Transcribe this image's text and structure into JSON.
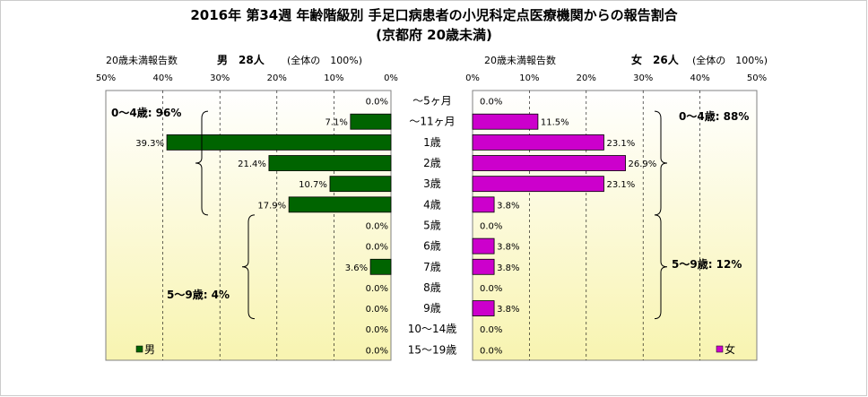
{
  "chart_data": {
    "type": "bar",
    "title": "2016年 第34週 年齢階級別 手足口病患者の小児科定点医療機関からの報告割合",
    "subtitle": "(京都府 20歳未満)",
    "categories": [
      "～5ヶ月",
      "～11ヶ月",
      "1歳",
      "2歳",
      "3歳",
      "4歳",
      "5歳",
      "6歳",
      "7歳",
      "8歳",
      "9歳",
      "10～14歳",
      "15～19歳"
    ],
    "axis_range": [
      0,
      50
    ],
    "x_ticks": [
      "0%",
      "10%",
      "20%",
      "30%",
      "40%",
      "50%"
    ],
    "series": [
      {
        "name": "男",
        "side": "left",
        "color": "#006400",
        "header_label": "20歳未満報告数",
        "header_count": "男　28人",
        "header_total": "(全体の　100%)",
        "values": [
          0.0,
          7.1,
          39.3,
          21.4,
          10.7,
          17.9,
          0.0,
          0.0,
          3.6,
          0.0,
          0.0,
          0.0,
          0.0
        ],
        "value_labels": [
          "0.0%",
          "7.1%",
          "39.3%",
          "21.4%",
          "10.7%",
          "17.9%",
          "0.0%",
          "0.0%",
          "3.6%",
          "0.0%",
          "0.0%",
          "0.0%",
          "0.0%"
        ],
        "groups": [
          {
            "label": "0～4歳: 96%",
            "from": 1,
            "to": 5
          },
          {
            "label": "5～9歳: 4%",
            "from": 6,
            "to": 10
          }
        ]
      },
      {
        "name": "女",
        "side": "right",
        "color": "#cc00cc",
        "header_label": "20歳未満報告数",
        "header_count": "女　26人",
        "header_total": "(全体の　100%)",
        "values": [
          0.0,
          11.5,
          23.1,
          26.9,
          23.1,
          3.8,
          0.0,
          3.8,
          3.8,
          0.0,
          3.8,
          0.0,
          0.0
        ],
        "value_labels": [
          "0.0%",
          "11.5%",
          "23.1%",
          "26.9%",
          "23.1%",
          "3.8%",
          "0.0%",
          "3.8%",
          "3.8%",
          "0.0%",
          "3.8%",
          "0.0%",
          "0.0%"
        ],
        "groups": [
          {
            "label": "0～4歳: 88%",
            "from": 1,
            "to": 5
          },
          {
            "label": "5～9歳: 12%",
            "from": 6,
            "to": 10
          }
        ]
      }
    ],
    "legend": {
      "male": "男",
      "female": "女",
      "placement": "bottom"
    },
    "grid": true
  }
}
